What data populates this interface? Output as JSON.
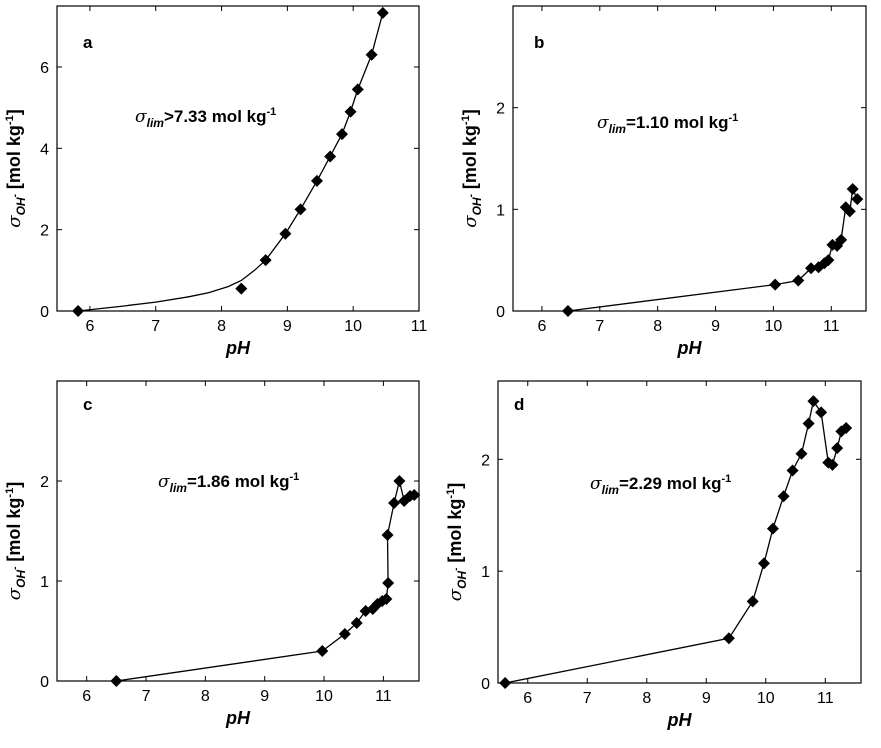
{
  "chart_data": [
    {
      "type": "line",
      "panel": "a",
      "annotation": {
        "sym": "σ",
        "sub": "lim",
        "main": ">7.33 mol kg",
        "sup": "-1"
      },
      "xlabel": "pH",
      "ylabel": {
        "sym": "σ",
        "sub": "OH",
        "subsup": "-",
        "main": " [mol kg",
        "sup": "-1",
        "tail": "]"
      },
      "xlim": [
        5.5,
        11.0
      ],
      "ylim": [
        0,
        7.5
      ],
      "xticks": [
        6,
        7,
        8,
        9,
        10,
        11
      ],
      "yticks": [
        0,
        2,
        4,
        6
      ],
      "points": [
        [
          5.82,
          0.0
        ],
        [
          8.3,
          0.55
        ],
        [
          8.67,
          1.25
        ],
        [
          8.97,
          1.9
        ],
        [
          9.2,
          2.5
        ],
        [
          9.45,
          3.2
        ],
        [
          9.65,
          3.8
        ],
        [
          9.83,
          4.35
        ],
        [
          9.96,
          4.9
        ],
        [
          10.07,
          5.45
        ],
        [
          10.28,
          6.3
        ],
        [
          10.45,
          7.33
        ]
      ],
      "fit_curve": [
        [
          5.82,
          0.0
        ],
        [
          6.5,
          0.12
        ],
        [
          7.0,
          0.22
        ],
        [
          7.5,
          0.35
        ],
        [
          7.8,
          0.45
        ],
        [
          8.1,
          0.6
        ],
        [
          8.3,
          0.75
        ],
        [
          8.5,
          1.0
        ],
        [
          8.67,
          1.25
        ],
        [
          8.97,
          1.9
        ],
        [
          9.2,
          2.5
        ],
        [
          9.45,
          3.2
        ],
        [
          9.65,
          3.8
        ],
        [
          9.83,
          4.35
        ],
        [
          9.96,
          4.9
        ],
        [
          10.07,
          5.45
        ],
        [
          10.28,
          6.3
        ],
        [
          10.45,
          7.33
        ]
      ]
    },
    {
      "type": "line",
      "panel": "b",
      "annotation": {
        "sym": "σ",
        "sub": "lim",
        "main": "=1.10 mol kg",
        "sup": "-1"
      },
      "xlabel": "pH",
      "ylabel": {
        "sym": "σ",
        "sub": "OH",
        "subsup": "-",
        "main": " [mol kg",
        "sup": "-1",
        "tail": "]"
      },
      "xlim": [
        5.5,
        11.6
      ],
      "ylim": [
        0,
        3.0
      ],
      "xticks": [
        6,
        7,
        8,
        9,
        10,
        11
      ],
      "yticks": [
        0,
        1,
        2
      ],
      "points": [
        [
          6.45,
          0.0
        ],
        [
          10.03,
          0.26
        ],
        [
          10.43,
          0.3
        ],
        [
          10.65,
          0.42
        ],
        [
          10.78,
          0.43
        ],
        [
          10.88,
          0.47
        ],
        [
          10.95,
          0.5
        ],
        [
          11.02,
          0.65
        ],
        [
          11.1,
          0.64
        ],
        [
          11.17,
          0.7
        ],
        [
          11.25,
          1.02
        ],
        [
          11.32,
          0.98
        ],
        [
          11.37,
          1.2
        ],
        [
          11.45,
          1.1
        ]
      ],
      "fit_curve": [
        [
          6.45,
          0.0
        ],
        [
          10.03,
          0.26
        ],
        [
          10.43,
          0.3
        ],
        [
          10.65,
          0.42
        ],
        [
          10.78,
          0.43
        ],
        [
          10.88,
          0.47
        ],
        [
          10.95,
          0.5
        ],
        [
          11.02,
          0.65
        ],
        [
          11.1,
          0.64
        ],
        [
          11.17,
          0.7
        ],
        [
          11.25,
          1.02
        ],
        [
          11.32,
          0.98
        ],
        [
          11.37,
          1.2
        ],
        [
          11.45,
          1.1
        ]
      ]
    },
    {
      "type": "line",
      "panel": "c",
      "annotation": {
        "sym": "σ",
        "sub": "lim",
        "main": "=1.86 mol kg",
        "sup": "-1"
      },
      "xlabel": "pH",
      "ylabel": {
        "sym": "σ",
        "sub": "OH",
        "subsup": "-",
        "main": " [mol kg",
        "sup": "-1",
        "tail": "]"
      },
      "xlim": [
        5.5,
        11.6
      ],
      "ylim": [
        0,
        3.0
      ],
      "xticks": [
        6,
        7,
        8,
        9,
        10,
        11
      ],
      "yticks": [
        0,
        1,
        2
      ],
      "points": [
        [
          6.5,
          0.0
        ],
        [
          9.97,
          0.3
        ],
        [
          10.35,
          0.47
        ],
        [
          10.55,
          0.58
        ],
        [
          10.7,
          0.7
        ],
        [
          10.82,
          0.72
        ],
        [
          10.9,
          0.77
        ],
        [
          10.98,
          0.8
        ],
        [
          11.05,
          0.82
        ],
        [
          11.08,
          0.98
        ],
        [
          11.07,
          1.46
        ],
        [
          11.18,
          1.78
        ],
        [
          11.27,
          2.0
        ],
        [
          11.35,
          1.8
        ],
        [
          11.45,
          1.85
        ],
        [
          11.52,
          1.86
        ]
      ],
      "fit_curve": [
        [
          6.5,
          0.0
        ],
        [
          9.97,
          0.3
        ],
        [
          10.35,
          0.47
        ],
        [
          10.55,
          0.58
        ],
        [
          10.7,
          0.7
        ],
        [
          10.82,
          0.72
        ],
        [
          10.9,
          0.77
        ],
        [
          10.98,
          0.8
        ],
        [
          11.05,
          0.82
        ],
        [
          11.08,
          0.98
        ],
        [
          11.07,
          1.46
        ],
        [
          11.18,
          1.78
        ],
        [
          11.27,
          2.0
        ],
        [
          11.35,
          1.8
        ],
        [
          11.45,
          1.85
        ],
        [
          11.52,
          1.86
        ]
      ]
    },
    {
      "type": "line",
      "panel": "d",
      "annotation": {
        "sym": "σ",
        "sub": "lim",
        "main": "=2.29 mol kg",
        "sup": "-1"
      },
      "xlabel": "pH",
      "ylabel": {
        "sym": "σ",
        "sub": "OH",
        "subsup": "-",
        "main": " [mol kg",
        "sup": "-1",
        "tail": "]"
      },
      "xlim": [
        5.5,
        11.6
      ],
      "ylim": [
        0,
        2.7
      ],
      "xticks": [
        6,
        7,
        8,
        9,
        10,
        11
      ],
      "yticks": [
        0,
        1,
        2
      ],
      "points": [
        [
          5.62,
          0.0
        ],
        [
          9.38,
          0.4
        ],
        [
          9.78,
          0.73
        ],
        [
          9.97,
          1.07
        ],
        [
          10.12,
          1.38
        ],
        [
          10.3,
          1.67
        ],
        [
          10.45,
          1.9
        ],
        [
          10.6,
          2.05
        ],
        [
          10.72,
          2.32
        ],
        [
          10.8,
          2.52
        ],
        [
          10.93,
          2.42
        ],
        [
          11.05,
          1.97
        ],
        [
          11.12,
          1.95
        ],
        [
          11.2,
          2.1
        ],
        [
          11.27,
          2.25
        ],
        [
          11.35,
          2.28
        ]
      ],
      "fit_curve": [
        [
          5.62,
          0.0
        ],
        [
          9.38,
          0.4
        ],
        [
          9.78,
          0.73
        ],
        [
          9.97,
          1.07
        ],
        [
          10.12,
          1.38
        ],
        [
          10.3,
          1.67
        ],
        [
          10.45,
          1.9
        ],
        [
          10.6,
          2.05
        ],
        [
          10.72,
          2.32
        ],
        [
          10.8,
          2.52
        ],
        [
          10.93,
          2.42
        ],
        [
          11.05,
          1.97
        ],
        [
          11.12,
          1.95
        ],
        [
          11.2,
          2.1
        ],
        [
          11.27,
          2.25
        ],
        [
          11.35,
          2.28
        ]
      ]
    }
  ]
}
